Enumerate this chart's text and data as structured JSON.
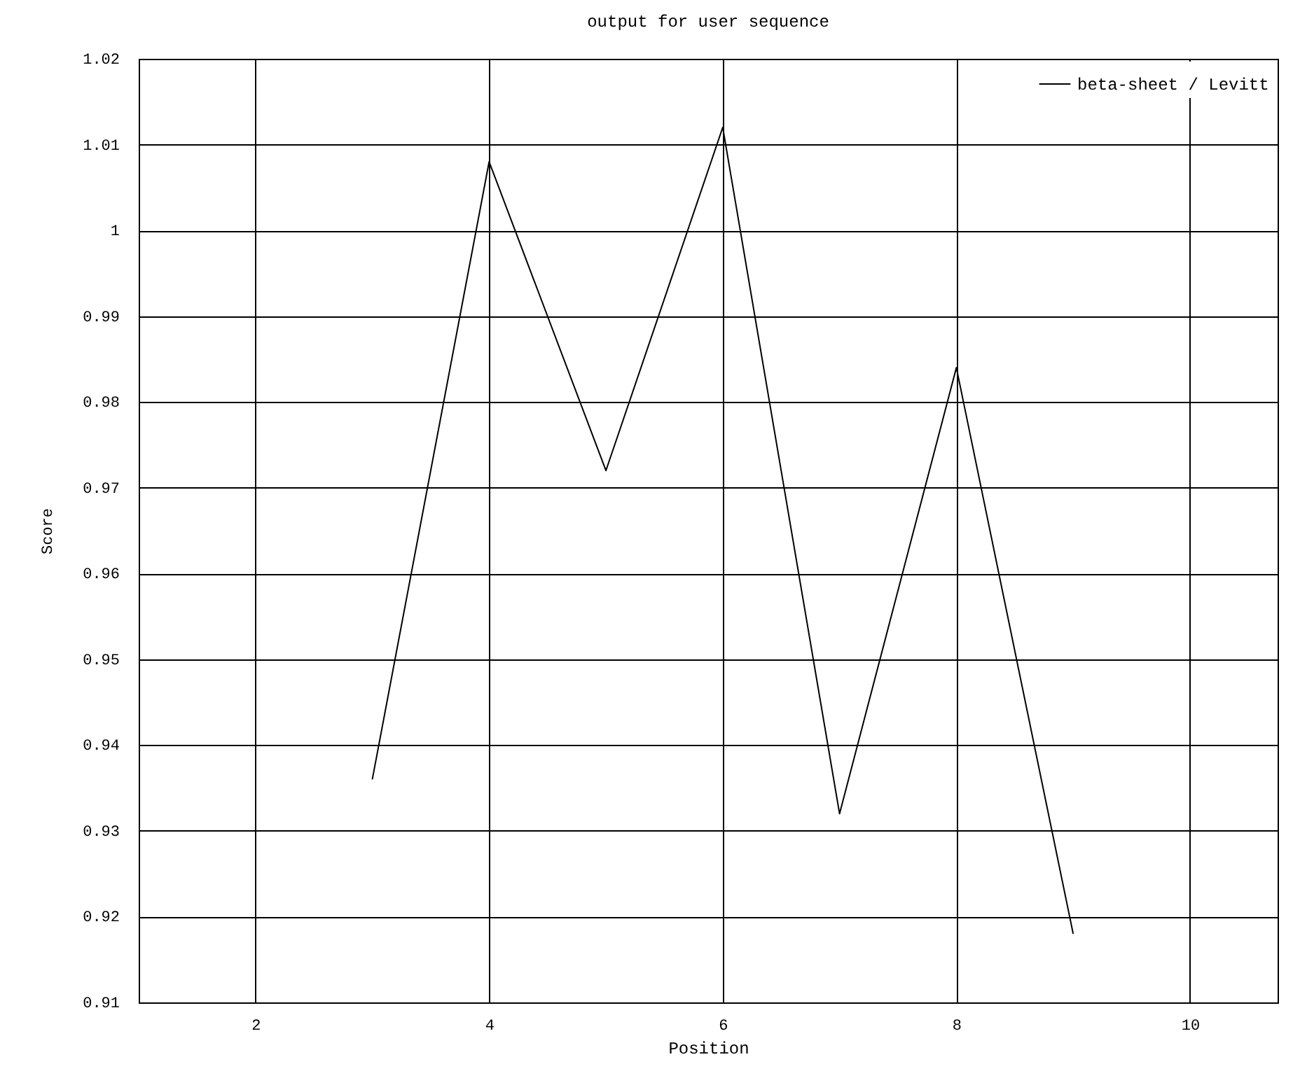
{
  "chart_data": {
    "type": "line",
    "title": "output for user sequence",
    "xlabel": "Position",
    "ylabel": "Score",
    "x": [
      3,
      4,
      5,
      6,
      7,
      8,
      9
    ],
    "series": [
      {
        "name": "beta-sheet / Levitt",
        "color": "#000000",
        "values": [
          0.936,
          1.008,
          0.972,
          1.012,
          0.932,
          0.984,
          0.918
        ]
      }
    ],
    "xlim": [
      1,
      10.75
    ],
    "xticks": [
      2,
      4,
      6,
      8,
      10
    ],
    "ylim": [
      0.91,
      1.02
    ],
    "yticks": [
      0.91,
      0.92,
      0.93,
      0.94,
      0.95,
      0.96,
      0.97,
      0.98,
      0.99,
      {
        "value": 1,
        "label": "1"
      },
      1.01,
      1.02
    ],
    "grid": true,
    "legend": "top right",
    "marker": "none",
    "line_style": "solid"
  }
}
